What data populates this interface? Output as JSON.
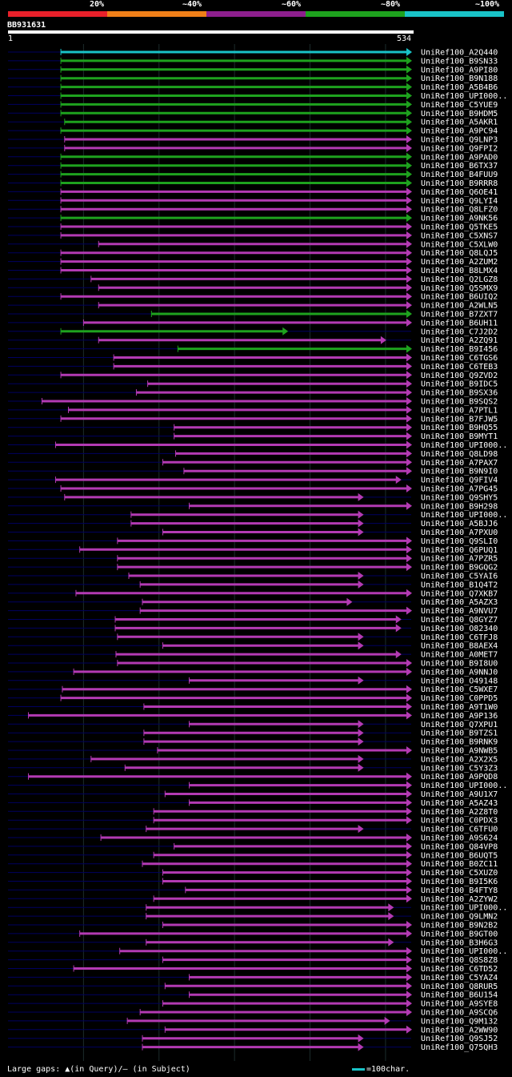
{
  "legend": {
    "labels": [
      "20%",
      "~40%",
      "~60%",
      "~80%",
      "~100%"
    ],
    "colors": [
      "#e8202a",
      "#f07f18",
      "#8e1f8e",
      "#1ea21e",
      "#19c3c8"
    ]
  },
  "query": {
    "id": "BB931631",
    "start": "1",
    "end": "534",
    "length": 534
  },
  "footer_text": "Large gaps: ▲(in Query)/— (in Subject)",
  "scale_text": "=100char.",
  "colors": {
    "cyan": "#19c3c8",
    "green": "#1ea21e",
    "magenta": "#b33ab3",
    "navy": "#000060",
    "grid": "#1c2b2b"
  },
  "chart_data": {
    "type": "alignment",
    "hits": [
      {
        "label": "UniRef100_A2Q440",
        "start": 70,
        "end": 534,
        "class": "cyan"
      },
      {
        "label": "UniRef100_B9SN33",
        "start": 70,
        "end": 534,
        "class": "green"
      },
      {
        "label": "UniRef100_A9PI80",
        "start": 70,
        "end": 534,
        "class": "green"
      },
      {
        "label": "UniRef100_B9N188",
        "start": 70,
        "end": 534,
        "class": "green"
      },
      {
        "label": "UniRef100_A5B4B6",
        "start": 70,
        "end": 534,
        "class": "green"
      },
      {
        "label": "UniRef100_UPI000..",
        "start": 70,
        "end": 534,
        "class": "green"
      },
      {
        "label": "UniRef100_C5YUE9",
        "start": 70,
        "end": 534,
        "class": "green"
      },
      {
        "label": "UniRef100_B9HDM5",
        "start": 70,
        "end": 534,
        "class": "green"
      },
      {
        "label": "UniRef100_A5AKR1",
        "start": 75,
        "end": 534,
        "class": "green"
      },
      {
        "label": "UniRef100_A9PC94",
        "start": 70,
        "end": 534,
        "class": "green"
      },
      {
        "label": "UniRef100_Q9LNP3",
        "start": 75,
        "end": 534,
        "class": "magenta"
      },
      {
        "label": "UniRef100_Q9FPI2",
        "start": 75,
        "end": 534,
        "class": "magenta"
      },
      {
        "label": "UniRef100_A9PAD0",
        "start": 70,
        "end": 534,
        "class": "green"
      },
      {
        "label": "UniRef100_B6TX37",
        "start": 70,
        "end": 534,
        "class": "green"
      },
      {
        "label": "UniRef100_B4FUU9",
        "start": 70,
        "end": 534,
        "class": "green"
      },
      {
        "label": "UniRef100_B9RRR8",
        "start": 70,
        "end": 534,
        "class": "green"
      },
      {
        "label": "UniRef100_Q6OE41",
        "start": 70,
        "end": 534,
        "class": "magenta"
      },
      {
        "label": "UniRef100_Q9LYI4",
        "start": 70,
        "end": 534,
        "class": "magenta"
      },
      {
        "label": "UniRef100_Q8LFZ0",
        "start": 70,
        "end": 534,
        "class": "magenta"
      },
      {
        "label": "UniRef100_A9NK56",
        "start": 70,
        "end": 534,
        "class": "green"
      },
      {
        "label": "UniRef100_Q5TKE5",
        "start": 70,
        "end": 534,
        "class": "magenta"
      },
      {
        "label": "UniRef100_C5XNS7",
        "start": 70,
        "end": 534,
        "class": "magenta"
      },
      {
        "label": "UniRef100_C5XLW0",
        "start": 120,
        "end": 534,
        "class": "magenta"
      },
      {
        "label": "UniRef100_Q8LQJ5",
        "start": 70,
        "end": 534,
        "class": "magenta"
      },
      {
        "label": "UniRef100_A2ZUM2",
        "start": 70,
        "end": 534,
        "class": "magenta"
      },
      {
        "label": "UniRef100_B8LMX4",
        "start": 70,
        "end": 534,
        "class": "magenta"
      },
      {
        "label": "UniRef100_Q2LGZ8",
        "start": 110,
        "end": 534,
        "class": "magenta"
      },
      {
        "label": "UniRef100_Q5SMX9",
        "start": 120,
        "end": 534,
        "class": "magenta"
      },
      {
        "label": "UniRef100_B6UIQ2",
        "start": 70,
        "end": 534,
        "class": "magenta"
      },
      {
        "label": "UniRef100_A2WLN5",
        "start": 120,
        "end": 534,
        "class": "magenta"
      },
      {
        "label": "UniRef100_B7ZXT7",
        "start": 190,
        "end": 534,
        "class": "green"
      },
      {
        "label": "UniRef100_B6UH11",
        "start": 100,
        "end": 534,
        "class": "magenta"
      },
      {
        "label": "UniRef100_C7J2D2",
        "start": 70,
        "end": 370,
        "class": "green"
      },
      {
        "label": "UniRef100_A2ZQ91",
        "start": 120,
        "end": 500,
        "class": "magenta"
      },
      {
        "label": "UniRef100_B9I456",
        "start": 225,
        "end": 534,
        "class": "green"
      },
      {
        "label": "UniRef100_C6TGS6",
        "start": 140,
        "end": 534,
        "class": "magenta"
      },
      {
        "label": "UniRef100_C6TEB3",
        "start": 140,
        "end": 534,
        "class": "magenta"
      },
      {
        "label": "UniRef100_Q9ZVD2",
        "start": 70,
        "end": 534,
        "class": "magenta"
      },
      {
        "label": "UniRef100_B9IDC5",
        "start": 185,
        "end": 534,
        "class": "magenta"
      },
      {
        "label": "UniRef100_B9SX36",
        "start": 170,
        "end": 534,
        "class": "magenta"
      },
      {
        "label": "UniRef100_B9SQS2",
        "start": 45,
        "end": 534,
        "class": "magenta"
      },
      {
        "label": "UniRef100_A7PTL1",
        "start": 80,
        "end": 534,
        "class": "magenta"
      },
      {
        "label": "UniRef100_B7FJW5",
        "start": 70,
        "end": 534,
        "class": "magenta"
      },
      {
        "label": "UniRef100_B9HQ55",
        "start": 220,
        "end": 534,
        "class": "magenta"
      },
      {
        "label": "UniRef100_B9MYT1",
        "start": 220,
        "end": 534,
        "class": "magenta"
      },
      {
        "label": "UniRef100_UPI000..",
        "start": 63,
        "end": 534,
        "class": "magenta"
      },
      {
        "label": "UniRef100_Q8LD98",
        "start": 222,
        "end": 534,
        "class": "magenta"
      },
      {
        "label": "UniRef100_A7PAX7",
        "start": 205,
        "end": 534,
        "class": "magenta"
      },
      {
        "label": "UniRef100_B9N9I0",
        "start": 233,
        "end": 534,
        "class": "magenta"
      },
      {
        "label": "UniRef100_Q9FIV4",
        "start": 63,
        "end": 520,
        "class": "magenta"
      },
      {
        "label": "UniRef100_A7PG45",
        "start": 70,
        "end": 534,
        "class": "magenta"
      },
      {
        "label": "UniRef100_Q9SHY5",
        "start": 75,
        "end": 470,
        "class": "magenta"
      },
      {
        "label": "UniRef100_B9H298",
        "start": 240,
        "end": 534,
        "class": "magenta"
      },
      {
        "label": "UniRef100_UPI000..",
        "start": 163,
        "end": 470,
        "class": "magenta"
      },
      {
        "label": "UniRef100_A5BJJ6",
        "start": 163,
        "end": 470,
        "class": "magenta"
      },
      {
        "label": "UniRef100_A7PXU0",
        "start": 205,
        "end": 470,
        "class": "magenta"
      },
      {
        "label": "UniRef100_Q9SLI0",
        "start": 145,
        "end": 534,
        "class": "magenta"
      },
      {
        "label": "UniRef100_Q6PUQ1",
        "start": 95,
        "end": 534,
        "class": "magenta"
      },
      {
        "label": "UniRef100_A7PZR5",
        "start": 145,
        "end": 534,
        "class": "magenta"
      },
      {
        "label": "UniRef100_B9GQG2",
        "start": 145,
        "end": 534,
        "class": "magenta"
      },
      {
        "label": "UniRef100_C5YAI6",
        "start": 160,
        "end": 470,
        "class": "magenta"
      },
      {
        "label": "UniRef100_B1Q4T2",
        "start": 175,
        "end": 470,
        "class": "magenta"
      },
      {
        "label": "UniRef100_Q7XKB7",
        "start": 90,
        "end": 534,
        "class": "magenta"
      },
      {
        "label": "UniRef100_A5AZX3",
        "start": 178,
        "end": 455,
        "class": "magenta"
      },
      {
        "label": "UniRef100_A9NVU7",
        "start": 175,
        "end": 534,
        "class": "magenta"
      },
      {
        "label": "UniRef100_Q8GYZ7",
        "start": 142,
        "end": 520,
        "class": "magenta"
      },
      {
        "label": "UniRef100_O82340",
        "start": 142,
        "end": 520,
        "class": "magenta"
      },
      {
        "label": "UniRef100_C6TFJ8",
        "start": 145,
        "end": 470,
        "class": "magenta"
      },
      {
        "label": "UniRef100_B8AEX4",
        "start": 205,
        "end": 470,
        "class": "magenta"
      },
      {
        "label": "UniRef100_A0MET7",
        "start": 143,
        "end": 520,
        "class": "magenta"
      },
      {
        "label": "UniRef100_B9I8U0",
        "start": 145,
        "end": 534,
        "class": "magenta"
      },
      {
        "label": "UniRef100_A9NNJ0",
        "start": 87,
        "end": 534,
        "class": "magenta"
      },
      {
        "label": "UniRef100_O49148",
        "start": 240,
        "end": 470,
        "class": "magenta"
      },
      {
        "label": "UniRef100_C5WXE7",
        "start": 72,
        "end": 534,
        "class": "magenta"
      },
      {
        "label": "UniRef100_C0PPD5",
        "start": 70,
        "end": 534,
        "class": "magenta"
      },
      {
        "label": "UniRef100_A9T1W0",
        "start": 180,
        "end": 534,
        "class": "magenta"
      },
      {
        "label": "UniRef100_A9P136",
        "start": 27,
        "end": 534,
        "class": "magenta"
      },
      {
        "label": "UniRef100_Q7XPU1",
        "start": 240,
        "end": 470,
        "class": "magenta"
      },
      {
        "label": "UniRef100_B9TZS1",
        "start": 180,
        "end": 470,
        "class": "magenta"
      },
      {
        "label": "UniRef100_B9RNK9",
        "start": 180,
        "end": 470,
        "class": "magenta"
      },
      {
        "label": "UniRef100_A9NWB5",
        "start": 198,
        "end": 534,
        "class": "magenta"
      },
      {
        "label": "UniRef100_A2X2X5",
        "start": 110,
        "end": 470,
        "class": "magenta"
      },
      {
        "label": "UniRef100_C5Y3Z3",
        "start": 155,
        "end": 470,
        "class": "magenta"
      },
      {
        "label": "UniRef100_A9PQD8",
        "start": 27,
        "end": 534,
        "class": "magenta"
      },
      {
        "label": "UniRef100_UPI000..",
        "start": 240,
        "end": 534,
        "class": "magenta"
      },
      {
        "label": "UniRef100_A9U1X7",
        "start": 208,
        "end": 534,
        "class": "magenta"
      },
      {
        "label": "UniRef100_A5AZ43",
        "start": 240,
        "end": 534,
        "class": "magenta"
      },
      {
        "label": "UniRef100_A2Z8T0",
        "start": 193,
        "end": 534,
        "class": "magenta"
      },
      {
        "label": "UniRef100_C0PDX3",
        "start": 193,
        "end": 534,
        "class": "magenta"
      },
      {
        "label": "UniRef100_C6TFU0",
        "start": 183,
        "end": 470,
        "class": "magenta"
      },
      {
        "label": "UniRef100_A9S624",
        "start": 123,
        "end": 534,
        "class": "magenta"
      },
      {
        "label": "UniRef100_Q84VP8",
        "start": 220,
        "end": 534,
        "class": "magenta"
      },
      {
        "label": "UniRef100_B6UQT5",
        "start": 193,
        "end": 534,
        "class": "magenta"
      },
      {
        "label": "UniRef100_B0ZC11",
        "start": 178,
        "end": 534,
        "class": "magenta"
      },
      {
        "label": "UniRef100_C5XUZ0",
        "start": 205,
        "end": 534,
        "class": "magenta"
      },
      {
        "label": "UniRef100_B9I5K6",
        "start": 205,
        "end": 534,
        "class": "magenta"
      },
      {
        "label": "UniRef100_B4FTY8",
        "start": 235,
        "end": 534,
        "class": "magenta"
      },
      {
        "label": "UniRef100_A2ZYW2",
        "start": 193,
        "end": 534,
        "class": "magenta"
      },
      {
        "label": "UniRef100_UPI000..",
        "start": 183,
        "end": 510,
        "class": "magenta"
      },
      {
        "label": "UniRef100_Q9LMN2",
        "start": 183,
        "end": 510,
        "class": "magenta"
      },
      {
        "label": "UniRef100_B9N2B2",
        "start": 205,
        "end": 534,
        "class": "magenta"
      },
      {
        "label": "UniRef100_B9GT00",
        "start": 95,
        "end": 534,
        "class": "magenta"
      },
      {
        "label": "UniRef100_B3H6G3",
        "start": 183,
        "end": 510,
        "class": "magenta"
      },
      {
        "label": "UniRef100_UPI000..",
        "start": 148,
        "end": 534,
        "class": "magenta"
      },
      {
        "label": "UniRef100_Q8S8Z8",
        "start": 205,
        "end": 534,
        "class": "magenta"
      },
      {
        "label": "UniRef100_C6TD52",
        "start": 87,
        "end": 534,
        "class": "magenta"
      },
      {
        "label": "UniRef100_C5YAZ4",
        "start": 240,
        "end": 534,
        "class": "magenta"
      },
      {
        "label": "UniRef100_Q8RUR5",
        "start": 208,
        "end": 534,
        "class": "magenta"
      },
      {
        "label": "UniRef100_B6U154",
        "start": 240,
        "end": 534,
        "class": "magenta"
      },
      {
        "label": "UniRef100_A9SYE8",
        "start": 205,
        "end": 534,
        "class": "magenta"
      },
      {
        "label": "UniRef100_A9SCQ6",
        "start": 175,
        "end": 534,
        "class": "magenta"
      },
      {
        "label": "UniRef100_Q9M132",
        "start": 158,
        "end": 505,
        "class": "magenta"
      },
      {
        "label": "UniRef100_A2WW90",
        "start": 208,
        "end": 534,
        "class": "magenta"
      },
      {
        "label": "UniRef100_Q9SJ52",
        "start": 178,
        "end": 470,
        "class": "magenta"
      },
      {
        "label": "UniRef100_Q75QH3",
        "start": 178,
        "end": 470,
        "class": "magenta"
      }
    ]
  }
}
